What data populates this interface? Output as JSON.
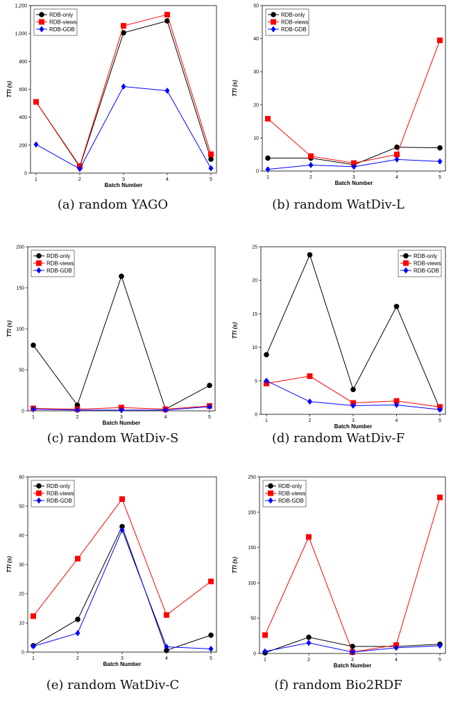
{
  "chart_data": [
    {
      "id": "a",
      "type": "line",
      "caption": "(a)  random YAGO",
      "xlabel": "Batch Number",
      "ylabel": "TTI (s)",
      "x": [
        1,
        2,
        3,
        4,
        5
      ],
      "ylim": [
        0,
        1200
      ],
      "yticks": [
        0,
        200,
        400,
        600,
        800,
        1000,
        1200
      ],
      "yticklabels": [
        "0",
        "200",
        "400",
        "600",
        "800",
        "1,000",
        "1,200"
      ],
      "legend": "top-left",
      "series": [
        {
          "name": "RDB-only",
          "color": "#000000",
          "marker": "circle",
          "values": [
            510,
            45,
            1005,
            1090,
            100
          ]
        },
        {
          "name": "RDB-views",
          "color": "#ff0000",
          "marker": "square",
          "values": [
            510,
            50,
            1055,
            1135,
            135
          ]
        },
        {
          "name": "RDB-GDB",
          "color": "#0000ff",
          "marker": "diamond",
          "values": [
            205,
            30,
            620,
            590,
            35
          ]
        }
      ]
    },
    {
      "id": "b",
      "type": "line",
      "caption": "(b)  random WatDiv-L",
      "xlabel": "Batch Number",
      "ylabel": "TTI (s)",
      "x": [
        1,
        2,
        3,
        4,
        5
      ],
      "ylim": [
        0,
        50
      ],
      "yticks": [
        0,
        10,
        20,
        30,
        40,
        50
      ],
      "yticklabels": [
        "0",
        "10",
        "20",
        "30",
        "40",
        "50"
      ],
      "legend": "top-left",
      "series": [
        {
          "name": "RDB-only",
          "color": "#000000",
          "marker": "circle",
          "values": [
            3.9,
            3.9,
            1.9,
            7.2,
            7.0
          ]
        },
        {
          "name": "RDB-views",
          "color": "#ff0000",
          "marker": "square",
          "values": [
            15.8,
            4.5,
            2.4,
            5.0,
            39.5
          ]
        },
        {
          "name": "RDB-GDB",
          "color": "#0000ff",
          "marker": "diamond",
          "values": [
            0.5,
            1.8,
            1.3,
            3.5,
            2.9
          ]
        }
      ]
    },
    {
      "id": "c",
      "type": "line",
      "caption": "(c)  random WatDiv-S",
      "xlabel": "Batch Number",
      "ylabel": "TTI (s)",
      "x": [
        1,
        2,
        3,
        4,
        5
      ],
      "ylim": [
        0,
        200
      ],
      "yticks": [
        0,
        50,
        100,
        150,
        200
      ],
      "yticklabels": [
        "0",
        "50",
        "100",
        "150",
        "200"
      ],
      "legend": "top-left",
      "series": [
        {
          "name": "RDB-only",
          "color": "#000000",
          "marker": "circle",
          "values": [
            80,
            7,
            164,
            2,
            31
          ]
        },
        {
          "name": "RDB-views",
          "color": "#ff0000",
          "marker": "square",
          "values": [
            3,
            2,
            4,
            2,
            6
          ]
        },
        {
          "name": "RDB-GDB",
          "color": "#0000ff",
          "marker": "diamond",
          "values": [
            2,
            1,
            1,
            1,
            5
          ]
        }
      ]
    },
    {
      "id": "d",
      "type": "line",
      "caption": "(d)  random WatDiv-F",
      "xlabel": "Batch Number",
      "ylabel": "TTI (s)",
      "x": [
        1,
        2,
        3,
        4,
        5
      ],
      "ylim": [
        0,
        25
      ],
      "yticks": [
        0,
        5,
        10,
        15,
        20,
        25
      ],
      "yticklabels": [
        "0",
        "5",
        "10",
        "15",
        "20",
        "25"
      ],
      "legend": "top-right",
      "series": [
        {
          "name": "RDB-only",
          "color": "#000000",
          "marker": "circle",
          "values": [
            8.9,
            23.8,
            3.7,
            16.1,
            0.8
          ]
        },
        {
          "name": "RDB-views",
          "color": "#ff0000",
          "marker": "square",
          "values": [
            4.6,
            5.7,
            1.7,
            2.0,
            1.1
          ]
        },
        {
          "name": "RDB-GDB",
          "color": "#0000ff",
          "marker": "diamond",
          "values": [
            5.0,
            1.9,
            1.3,
            1.4,
            0.7
          ]
        }
      ]
    },
    {
      "id": "e",
      "type": "line",
      "caption": "(e)  random WatDiv-C",
      "xlabel": "Batch Number",
      "ylabel": "TTI (s)",
      "x": [
        1,
        2,
        3,
        4,
        5
      ],
      "ylim": [
        0,
        60
      ],
      "yticks": [
        0,
        10,
        20,
        30,
        40,
        50,
        60
      ],
      "yticklabels": [
        "0",
        "10",
        "20",
        "30",
        "40",
        "50",
        "60"
      ],
      "legend": "top-left",
      "series": [
        {
          "name": "RDB-only",
          "color": "#000000",
          "marker": "circle",
          "values": [
            2.2,
            11.2,
            43.0,
            0.6,
            5.8
          ]
        },
        {
          "name": "RDB-views",
          "color": "#ff0000",
          "marker": "square",
          "values": [
            12.3,
            32.0,
            52.4,
            12.7,
            24.2
          ]
        },
        {
          "name": "RDB-GDB",
          "color": "#0000ff",
          "marker": "diamond",
          "values": [
            2.0,
            6.5,
            41.8,
            1.8,
            1.1
          ]
        }
      ]
    },
    {
      "id": "f",
      "type": "line",
      "caption": "(f)  random Bio2RDF",
      "xlabel": "Batch Number",
      "ylabel": "TTI (s)",
      "x": [
        1,
        2,
        3,
        4,
        5
      ],
      "ylim": [
        0,
        250
      ],
      "yticks": [
        0,
        50,
        100,
        150,
        200,
        250
      ],
      "yticklabels": [
        "0",
        "50",
        "100",
        "150",
        "200",
        "250"
      ],
      "legend": "top-left",
      "series": [
        {
          "name": "RDB-only",
          "color": "#000000",
          "marker": "circle",
          "values": [
            1,
            23,
            10,
            10,
            13
          ]
        },
        {
          "name": "RDB-views",
          "color": "#ff0000",
          "marker": "square",
          "values": [
            26,
            165,
            2,
            12,
            221
          ]
        },
        {
          "name": "RDB-GDB",
          "color": "#0000ff",
          "marker": "diamond",
          "values": [
            3,
            15,
            2,
            8,
            11
          ]
        }
      ]
    }
  ]
}
